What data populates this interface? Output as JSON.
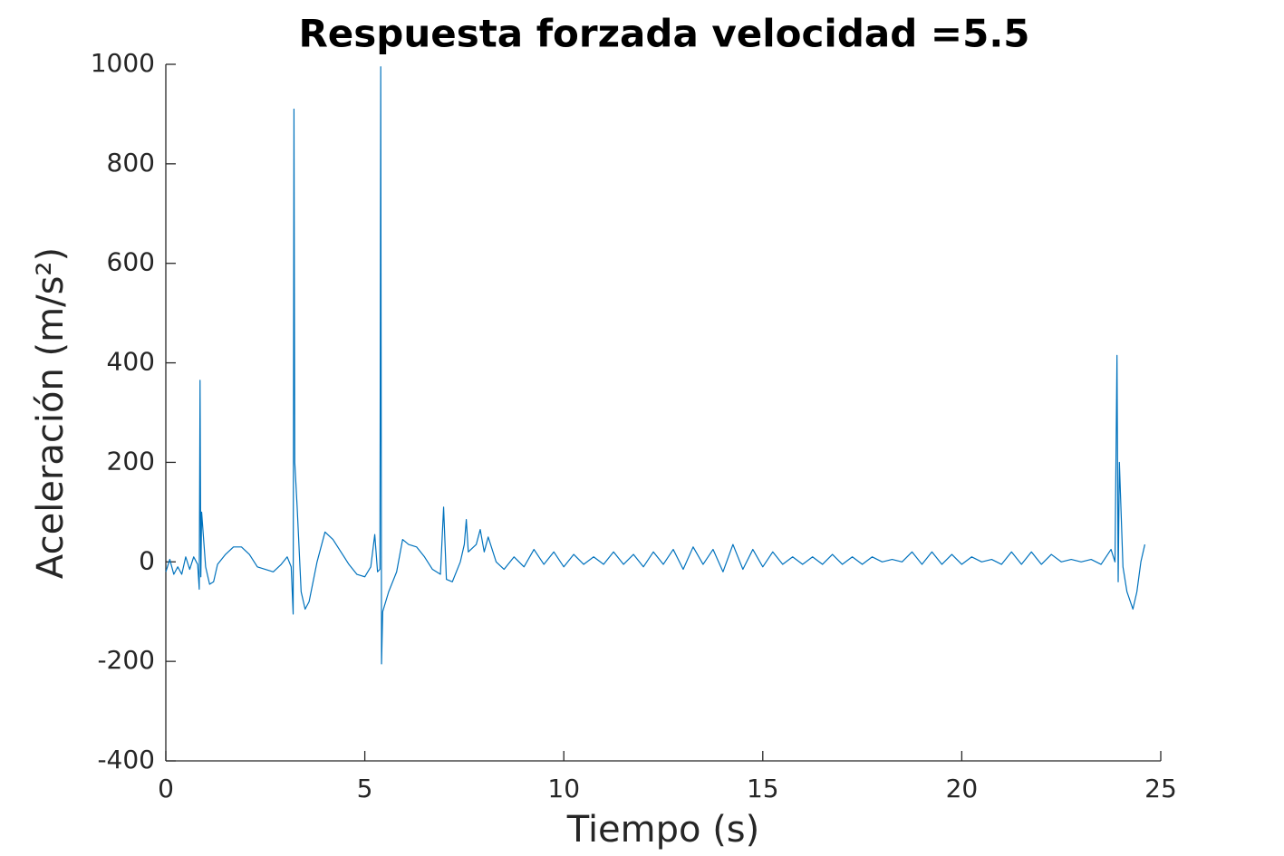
{
  "chart_data": {
    "type": "line",
    "title": "Respuesta forzada velocidad =5.5",
    "xlabel": "Tiempo (s)",
    "ylabel": "Aceleración (m/s²)",
    "color": "#0072bd",
    "xlim": [
      0,
      25
    ],
    "xticks": [
      0,
      5,
      10,
      15,
      20,
      25
    ],
    "ylim": [
      -400,
      1000
    ],
    "yticks": [
      -400,
      -200,
      0,
      200,
      400,
      600,
      800,
      1000
    ],
    "x": [
      0,
      0.1,
      0.2,
      0.3,
      0.4,
      0.5,
      0.6,
      0.7,
      0.8,
      0.84,
      0.86,
      0.88,
      0.9,
      1.0,
      1.1,
      1.2,
      1.3,
      1.5,
      1.7,
      1.9,
      2.1,
      2.3,
      2.5,
      2.7,
      2.9,
      3.05,
      3.15,
      3.2,
      3.22,
      3.24,
      3.3,
      3.4,
      3.5,
      3.6,
      3.8,
      4.0,
      4.2,
      4.4,
      4.6,
      4.8,
      5.0,
      5.15,
      5.25,
      5.32,
      5.38,
      5.4,
      5.42,
      5.45,
      5.6,
      5.8,
      5.95,
      6.1,
      6.3,
      6.5,
      6.7,
      6.9,
      6.98,
      7.05,
      7.2,
      7.4,
      7.5,
      7.55,
      7.6,
      7.8,
      7.9,
      8.0,
      8.1,
      8.3,
      8.5,
      8.75,
      9.0,
      9.25,
      9.5,
      9.75,
      10.0,
      10.25,
      10.5,
      10.75,
      11.0,
      11.25,
      11.5,
      11.75,
      12.0,
      12.25,
      12.5,
      12.75,
      13.0,
      13.25,
      13.5,
      13.75,
      14.0,
      14.25,
      14.5,
      14.75,
      15.0,
      15.25,
      15.5,
      15.75,
      16.0,
      16.25,
      16.5,
      16.75,
      17.0,
      17.25,
      17.5,
      17.75,
      18.0,
      18.25,
      18.5,
      18.75,
      19.0,
      19.25,
      19.5,
      19.75,
      20.0,
      20.25,
      20.5,
      20.75,
      21.0,
      21.25,
      21.5,
      21.75,
      22.0,
      22.25,
      22.5,
      22.75,
      23.0,
      23.25,
      23.5,
      23.75,
      23.85,
      23.9,
      23.93,
      23.96,
      24.05,
      24.15,
      24.3,
      24.4,
      24.5,
      24.6
    ],
    "values": [
      -20,
      5,
      -25,
      -10,
      -25,
      10,
      -15,
      10,
      -5,
      -55,
      365,
      -30,
      100,
      -10,
      -45,
      -40,
      -5,
      15,
      30,
      30,
      15,
      -10,
      -15,
      -20,
      -5,
      10,
      -10,
      -105,
      910,
      200,
      110,
      -60,
      -95,
      -80,
      0,
      60,
      45,
      20,
      -5,
      -25,
      -30,
      -10,
      55,
      -20,
      -15,
      995,
      -205,
      -100,
      -60,
      -20,
      45,
      35,
      30,
      10,
      -15,
      -25,
      110,
      -35,
      -40,
      0,
      35,
      85,
      20,
      35,
      65,
      20,
      50,
      0,
      -15,
      10,
      -10,
      25,
      -5,
      20,
      -10,
      15,
      -5,
      10,
      -5,
      20,
      -5,
      15,
      -10,
      20,
      -5,
      25,
      -15,
      30,
      -5,
      25,
      -20,
      35,
      -15,
      25,
      -10,
      20,
      -5,
      10,
      -5,
      10,
      -5,
      15,
      -5,
      10,
      -5,
      10,
      0,
      5,
      0,
      20,
      -5,
      20,
      -5,
      15,
      -5,
      10,
      0,
      5,
      -5,
      20,
      -5,
      20,
      -5,
      15,
      0,
      5,
      0,
      5,
      -5,
      25,
      0,
      415,
      -40,
      200,
      -10,
      -60,
      -95,
      -60,
      0,
      35
    ]
  }
}
